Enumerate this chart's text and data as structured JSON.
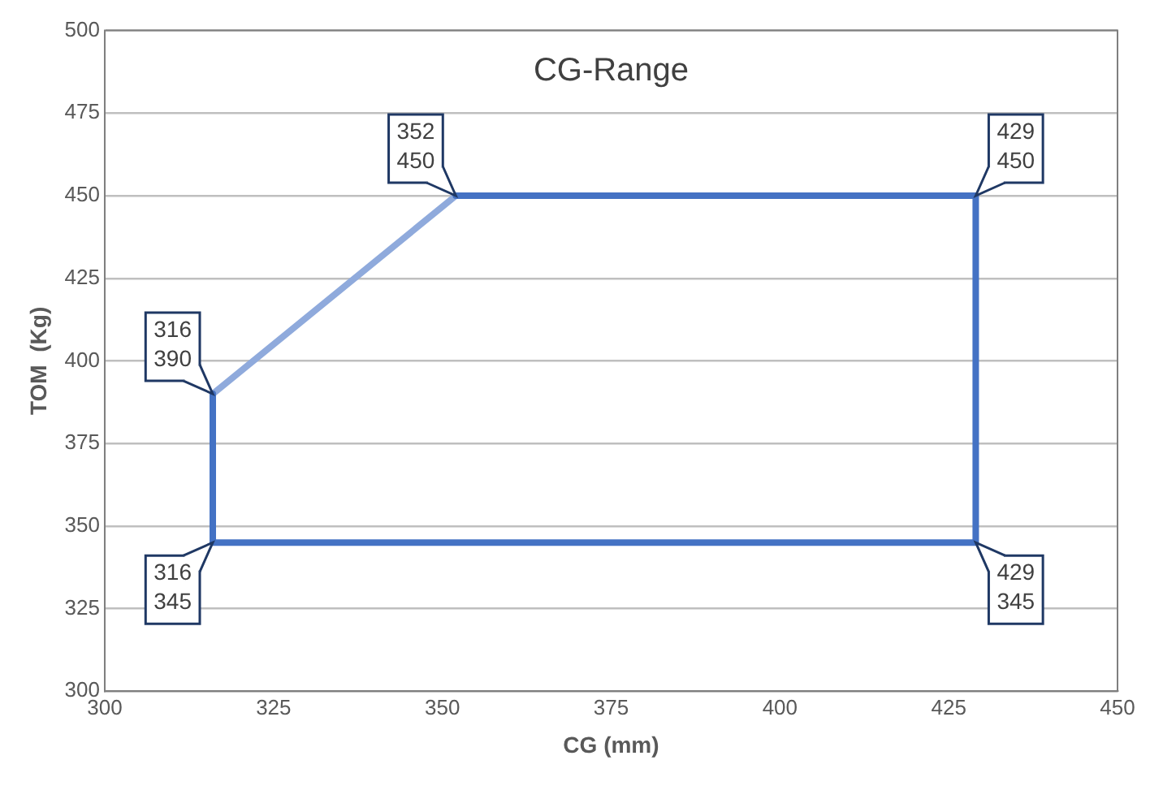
{
  "chart_data": {
    "type": "line",
    "title": "CG-Range",
    "xlabel": "CG (mm)",
    "ylabel": "TOM  (Kg)",
    "series": [
      {
        "color": "#4472c4",
        "x": [
          352,
          429,
          429,
          316,
          316
        ],
        "values": [
          450,
          450,
          345,
          345,
          390
        ]
      },
      {
        "color": "#8faadc",
        "x": [
          316,
          352
        ],
        "values": [
          390,
          450
        ]
      }
    ],
    "xlim": [
      300,
      450
    ],
    "xticks": [
      300,
      325,
      350,
      375,
      400,
      425,
      450
    ],
    "ylim": [
      300,
      500
    ],
    "yticks": [
      300,
      325,
      350,
      375,
      400,
      425,
      450,
      475,
      500
    ],
    "grid": "y",
    "legend": false,
    "marker": "none",
    "line_style": "solid",
    "annotations": [
      {
        "text": "352\n450",
        "x": 352,
        "y": 450
      },
      {
        "text": "429\n450",
        "x": 429,
        "y": 450
      },
      {
        "text": "316\n390",
        "x": 316,
        "y": 390
      },
      {
        "text": "316\n345",
        "x": 316,
        "y": 345
      },
      {
        "text": "429\n345",
        "x": 429,
        "y": 345
      }
    ]
  }
}
